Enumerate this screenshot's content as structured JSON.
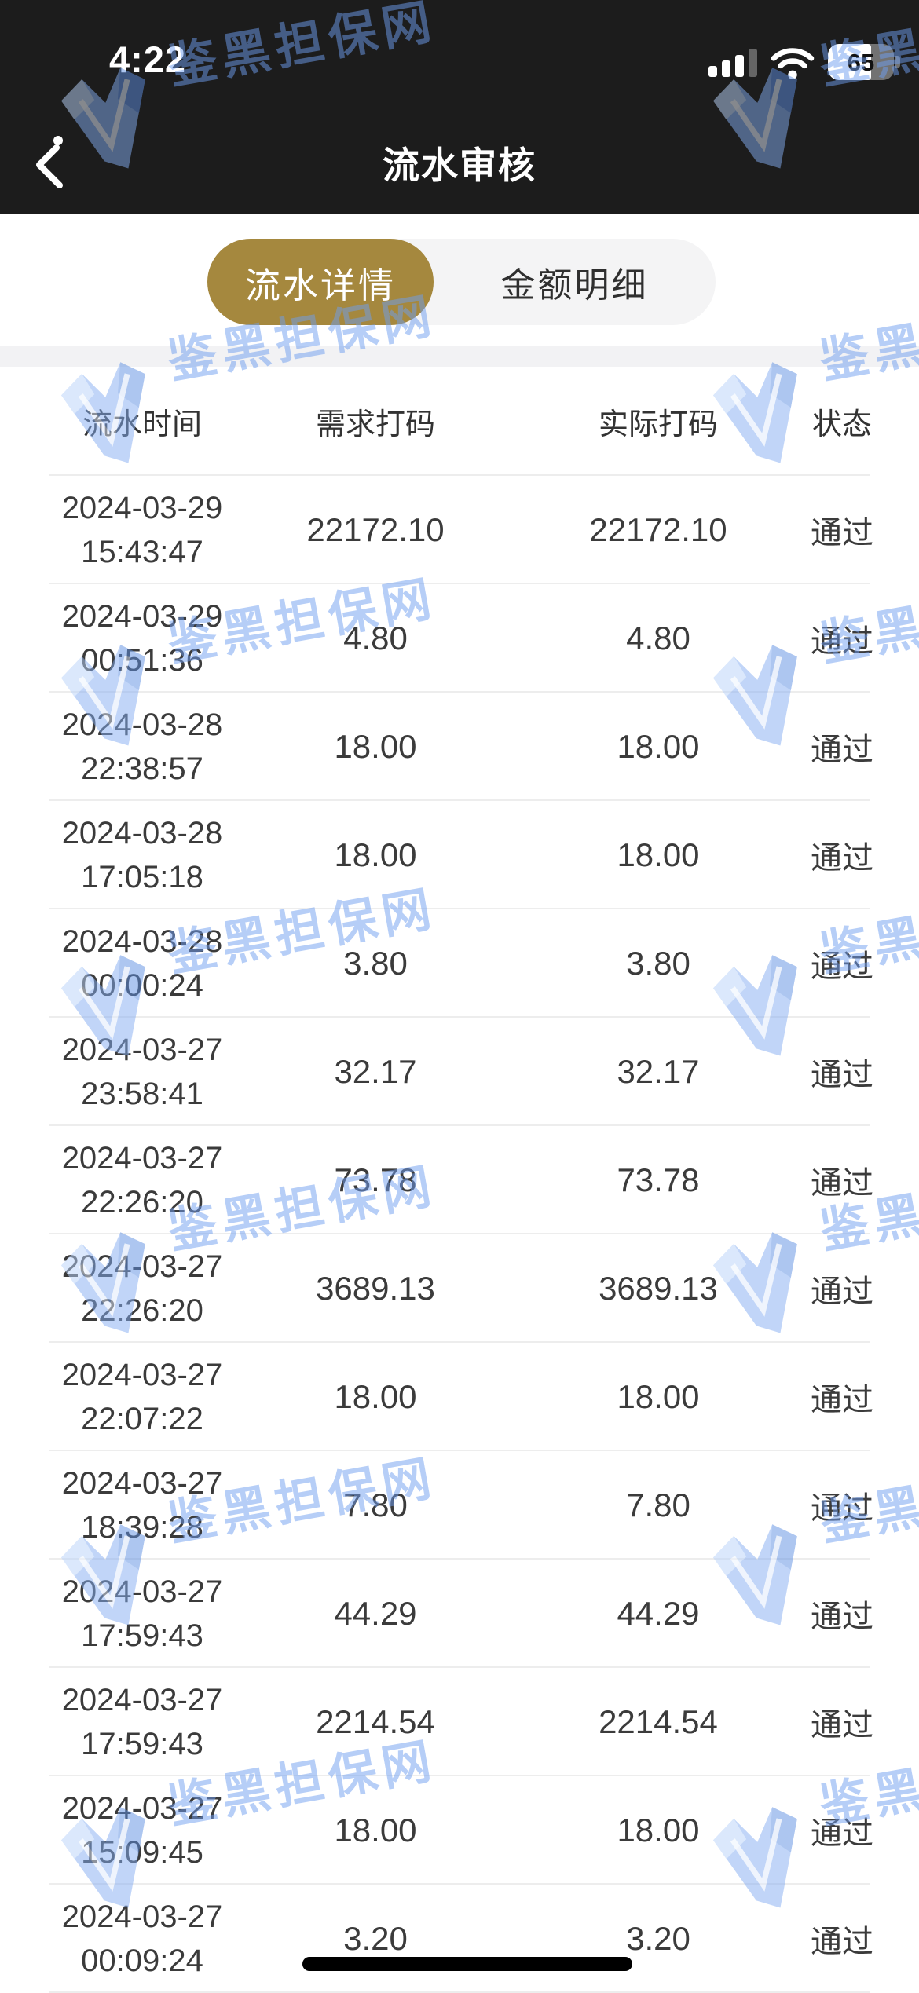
{
  "status_bar": {
    "time": "4:22",
    "battery_percent": 65,
    "battery_label": "65"
  },
  "nav": {
    "title": "流水审核"
  },
  "tabs": {
    "active_label": "流水详情",
    "inactive_label": "金额明细"
  },
  "table": {
    "headers": [
      "流水时间",
      "需求打码",
      "实际打码",
      "状态"
    ],
    "rows": [
      {
        "date": "2024-03-29",
        "time": "15:43:47",
        "need": "22172.10",
        "actual": "22172.10",
        "status": "通过"
      },
      {
        "date": "2024-03-29",
        "time": "00:51:36",
        "need": "4.80",
        "actual": "4.80",
        "status": "通过"
      },
      {
        "date": "2024-03-28",
        "time": "22:38:57",
        "need": "18.00",
        "actual": "18.00",
        "status": "通过"
      },
      {
        "date": "2024-03-28",
        "time": "17:05:18",
        "need": "18.00",
        "actual": "18.00",
        "status": "通过"
      },
      {
        "date": "2024-03-28",
        "time": "00:00:24",
        "need": "3.80",
        "actual": "3.80",
        "status": "通过"
      },
      {
        "date": "2024-03-27",
        "time": "23:58:41",
        "need": "32.17",
        "actual": "32.17",
        "status": "通过"
      },
      {
        "date": "2024-03-27",
        "time": "22:26:20",
        "need": "73.78",
        "actual": "73.78",
        "status": "通过"
      },
      {
        "date": "2024-03-27",
        "time": "22:26:20",
        "need": "3689.13",
        "actual": "3689.13",
        "status": "通过"
      },
      {
        "date": "2024-03-27",
        "time": "22:07:22",
        "need": "18.00",
        "actual": "18.00",
        "status": "通过"
      },
      {
        "date": "2024-03-27",
        "time": "18:39:28",
        "need": "7.80",
        "actual": "7.80",
        "status": "通过"
      },
      {
        "date": "2024-03-27",
        "time": "17:59:43",
        "need": "44.29",
        "actual": "44.29",
        "status": "通过"
      },
      {
        "date": "2024-03-27",
        "time": "17:59:43",
        "need": "2214.54",
        "actual": "2214.54",
        "status": "通过"
      },
      {
        "date": "2024-03-27",
        "time": "15:09:45",
        "need": "18.00",
        "actual": "18.00",
        "status": "通过"
      },
      {
        "date": "2024-03-27",
        "time": "00:09:24",
        "need": "3.20",
        "actual": "3.20",
        "status": "通过"
      }
    ]
  },
  "watermark": {
    "text": "鉴黑担保网"
  },
  "colors": {
    "header_bg": "#1c1c1c",
    "accent_gold": "#a5883e",
    "watermark_blue": "#6f9ef0",
    "row_divider": "#ededed",
    "status_pass_color": "#3b3b3b"
  }
}
